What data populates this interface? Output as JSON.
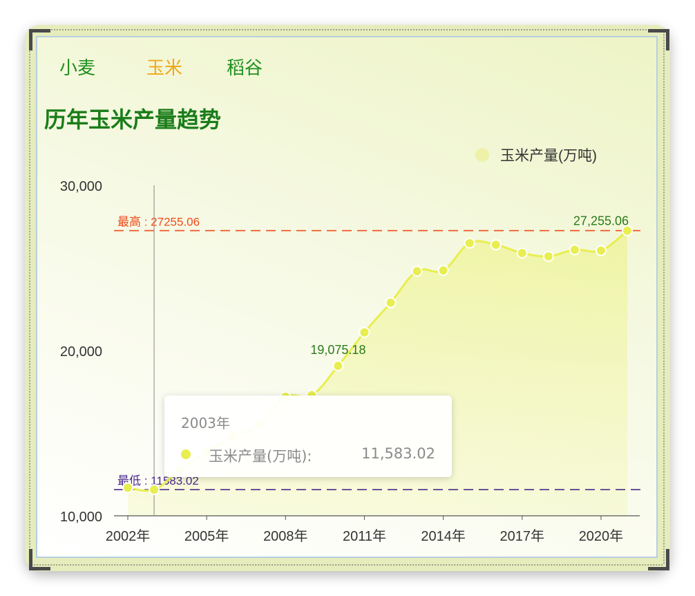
{
  "tabs": [
    {
      "label": "小麦",
      "active": false
    },
    {
      "label": "玉米",
      "active": true
    },
    {
      "label": "稻谷",
      "active": false
    }
  ],
  "title": "历年玉米产量趋势",
  "colors": {
    "accent_tab": "#f0a818",
    "tab": "#1f8f1f",
    "title": "#1a7d1a",
    "series": "#e8ee50",
    "max_line": "#f04a1a",
    "min_line": "#4a2a8a"
  },
  "tooltip": {
    "title": "2003年",
    "series_name": "玉米产量(万吨):",
    "value": "11,583.02"
  },
  "chart_data": {
    "type": "area",
    "series": [
      {
        "name": "玉米产量(万吨)",
        "x": [
          2002,
          2003,
          2004,
          2005,
          2006,
          2007,
          2008,
          2009,
          2010,
          2011,
          2012,
          2013,
          2014,
          2015,
          2016,
          2017,
          2018,
          2019,
          2020,
          2021
        ],
        "values": [
          11700,
          11583.02,
          12800,
          13900,
          14800,
          15500,
          17200,
          17300,
          19075.18,
          21100,
          22900,
          24800,
          24850,
          26500,
          26400,
          25900,
          25700,
          26100,
          26050,
          27255.06
        ]
      }
    ],
    "x_ticks": [
      "2002年",
      "2005年",
      "2008年",
      "2011年",
      "2014年",
      "2017年",
      "2020年"
    ],
    "y_ticks": [
      "10,000",
      "20,000",
      "30,000"
    ],
    "ylim": [
      10000,
      30000
    ],
    "legend": "top-right",
    "max_line_label": "最高 : 27255.06",
    "min_line_label": "最低 : 11583.02",
    "data_labels": [
      "19,075.18",
      "27,255.06"
    ]
  }
}
